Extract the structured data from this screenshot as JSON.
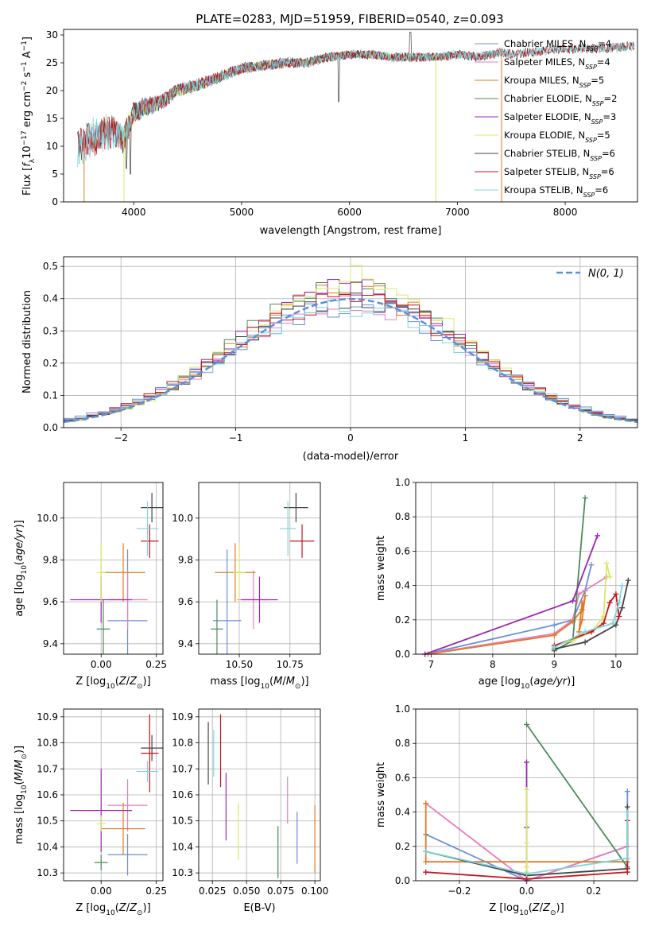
{
  "figure": {
    "title": "PLATE=0283, MJD=51959, FIBERID=0540, z=0.093"
  },
  "colors": {
    "chabrier_miles": "#6a8fdc",
    "salpeter_miles": "#e87dbf",
    "kroupa_miles": "#e07b25",
    "chabrier_elodie": "#4d8a5a",
    "salpeter_elodie": "#9b27b0",
    "kroupa_elodie": "#d8e864",
    "chabrier_stelib": "#444444",
    "salpeter_stelib": "#c4161c",
    "kroupa_stelib": "#7fd4dc"
  },
  "chart_data": [
    {
      "id": "spectrum",
      "type": "line",
      "xlabel": "wavelength [Angstrom, rest frame]",
      "ylabel": "Flux [f_λ10^-17 erg cm^-2 s^-1 A^-1]",
      "xlim": [
        3350,
        8670
      ],
      "ylim": [
        0,
        31
      ],
      "xticks": [
        4000,
        5000,
        6000,
        7000,
        8000
      ],
      "yticks": [
        0,
        5,
        10,
        15,
        20,
        25,
        30
      ],
      "grid": false,
      "legend_position": "top-right",
      "continuum": {
        "x": [
          3480,
          3600,
          3700,
          3800,
          3900,
          4000,
          4100,
          4200,
          4300,
          4400,
          4600,
          4800,
          5000,
          5200,
          5400,
          5600,
          5800,
          6000,
          6200,
          6400,
          6600,
          6800,
          7000,
          7200,
          7400,
          7500,
          7700,
          8000,
          8300,
          8600
        ],
        "y": [
          9.5,
          11.5,
          12,
          13,
          11,
          16,
          17,
          17.5,
          18.5,
          20,
          21,
          22.5,
          24,
          24.5,
          25,
          25,
          26,
          26.5,
          26.5,
          26,
          26,
          26,
          26.5,
          26,
          27,
          26.5,
          27,
          27.5,
          27.5,
          28
        ]
      },
      "noise": {
        "x": [
          3480,
          3600,
          3800,
          4000,
          4200,
          4400,
          5000,
          6000,
          7000,
          8000,
          8600
        ],
        "y": [
          3.0,
          3.5,
          3.0,
          2.0,
          1.5,
          1.2,
          1.0,
          0.8,
          0.8,
          0.8,
          0.8
        ]
      },
      "features": [
        {
          "x": 5900,
          "y": 18
        },
        {
          "x": 6563,
          "y": 30.5
        },
        {
          "x": 3934,
          "y": 6
        },
        {
          "x": 3969,
          "y": 5
        }
      ],
      "series": [
        {
          "name": "Chabrier MILES, N_SSP=4",
          "key": "chabrier_miles",
          "xrange": [
            3540,
            7410
          ]
        },
        {
          "name": "Salpeter MILES, N_SSP=4",
          "key": "salpeter_miles",
          "xrange": [
            3540,
            7410
          ]
        },
        {
          "name": "Kroupa MILES, N_SSP=5",
          "key": "kroupa_miles",
          "xrange": [
            3540,
            7410
          ]
        },
        {
          "name": "Chabrier ELODIE, N_SSP=2",
          "key": "chabrier_elodie",
          "xrange": [
            3900,
            6800
          ]
        },
        {
          "name": "Salpeter ELODIE, N_SSP=3",
          "key": "salpeter_elodie",
          "xrange": [
            3900,
            6800
          ]
        },
        {
          "name": "Kroupa ELODIE, N_SSP=5",
          "key": "kroupa_elodie",
          "xrange": [
            3900,
            6800
          ]
        },
        {
          "name": "Chabrier STELIB, N_SSP=6",
          "key": "chabrier_stelib",
          "xrange": [
            3480,
            8640
          ]
        },
        {
          "name": "Salpeter STELIB, N_SSP=6",
          "key": "salpeter_stelib",
          "xrange": [
            3480,
            8640
          ]
        },
        {
          "name": "Kroupa STELIB, N_SSP=6",
          "key": "kroupa_stelib",
          "xrange": [
            3480,
            8640
          ]
        }
      ],
      "drops": [
        {
          "key": "kroupa_miles",
          "x": 3540
        },
        {
          "key": "kroupa_elodie",
          "x": 3910
        },
        {
          "key": "kroupa_elodie",
          "x": 6800
        },
        {
          "key": "kroupa_miles",
          "x": 7410
        }
      ]
    },
    {
      "id": "residuals",
      "type": "histogram",
      "xlabel": "(data-model)/error",
      "ylabel": "Normed distribution",
      "xlim": [
        -2.5,
        2.5
      ],
      "ylim": [
        0,
        0.53
      ],
      "xticks": [
        -2,
        -1,
        0,
        1,
        2
      ],
      "yticks": [
        0.0,
        0.1,
        0.2,
        0.3,
        0.4,
        0.5
      ],
      "grid": true,
      "legend_position": "top-right",
      "reference": {
        "label": "N(0,1)",
        "mean": 0,
        "sigma": 1
      },
      "bin_width": 0.1,
      "bin_start": -2.5,
      "variants": [
        {
          "key": "chabrier_miles",
          "scale": 1.02,
          "width": 1.08
        },
        {
          "key": "salpeter_miles",
          "scale": 1.0,
          "width": 1.03
        },
        {
          "key": "kroupa_miles",
          "scale": 1.06,
          "width": 1.0
        },
        {
          "key": "chabrier_elodie",
          "scale": 1.1,
          "width": 0.98
        },
        {
          "key": "salpeter_elodie",
          "scale": 1.08,
          "width": 1.0
        },
        {
          "key": "kroupa_elodie",
          "scale": 1.12,
          "width": 0.96
        },
        {
          "key": "chabrier_stelib",
          "scale": 1.04,
          "width": 1.02
        },
        {
          "key": "salpeter_stelib",
          "scale": 1.05,
          "width": 1.04
        },
        {
          "key": "kroupa_stelib",
          "scale": 1.0,
          "width": 1.06
        }
      ]
    },
    {
      "id": "z_age",
      "type": "errorbar",
      "xlabel": "Z [log10(Z/Z_sun)]",
      "ylabel": "age [log10(age/yr)]",
      "xlim": [
        -0.17,
        0.28
      ],
      "ylim": [
        9.35,
        10.17
      ],
      "xticks": [
        0.0,
        0.25
      ],
      "yticks": [
        9.4,
        9.6,
        9.8,
        10.0
      ],
      "grid": true,
      "points": [
        {
          "key": "chabrier_miles",
          "x": 0.12,
          "xerr": 0.09,
          "y": 9.51,
          "yerr": 0.34
        },
        {
          "key": "salpeter_miles",
          "x": 0.12,
          "xerr": 0.09,
          "y": 9.61,
          "yerr": 0.14
        },
        {
          "key": "kroupa_miles",
          "x": 0.1,
          "xerr": 0.1,
          "y": 9.74,
          "yerr": 0.14
        },
        {
          "key": "chabrier_elodie",
          "x": 0.01,
          "xerr": 0.03,
          "y": 9.47,
          "yerr": 0.14
        },
        {
          "key": "salpeter_elodie",
          "x": 0.0,
          "xerr": 0.14,
          "y": 9.61,
          "yerr": 0.11
        },
        {
          "key": "kroupa_elodie",
          "x": 0.0,
          "xerr": 0.02,
          "y": 9.74,
          "yerr": 0.14
        },
        {
          "key": "chabrier_stelib",
          "x": 0.23,
          "xerr": 0.05,
          "y": 10.05,
          "yerr": 0.07
        },
        {
          "key": "salpeter_stelib",
          "x": 0.22,
          "xerr": 0.04,
          "y": 9.89,
          "yerr": 0.08
        },
        {
          "key": "kroupa_stelib",
          "x": 0.21,
          "xerr": 0.05,
          "y": 9.95,
          "yerr": 0.13
        }
      ]
    },
    {
      "id": "mass_age",
      "type": "errorbar",
      "xlabel": "mass [log10(M/M_sun)]",
      "ylabel": "",
      "xlim": [
        10.3,
        10.9
      ],
      "ylim": [
        9.35,
        10.17
      ],
      "xticks": [
        10.5,
        10.75
      ],
      "yticks": [
        9.4,
        9.6,
        9.8,
        10.0
      ],
      "grid": true,
      "points": [
        {
          "key": "chabrier_miles",
          "x": 10.44,
          "xerr": 0.07,
          "y": 9.51,
          "yerr": 0.34
        },
        {
          "key": "salpeter_miles",
          "x": 10.57,
          "xerr": 0.08,
          "y": 9.61,
          "yerr": 0.14
        },
        {
          "key": "kroupa_miles",
          "x": 10.48,
          "xerr": 0.1,
          "y": 9.74,
          "yerr": 0.14
        },
        {
          "key": "chabrier_elodie",
          "x": 10.39,
          "xerr": 0.03,
          "y": 9.47,
          "yerr": 0.14
        },
        {
          "key": "salpeter_elodie",
          "x": 10.6,
          "xerr": 0.09,
          "y": 9.61,
          "yerr": 0.11
        },
        {
          "key": "kroupa_elodie",
          "x": 10.5,
          "xerr": 0.03,
          "y": 9.74,
          "yerr": 0.14
        },
        {
          "key": "chabrier_stelib",
          "x": 10.78,
          "xerr": 0.06,
          "y": 10.05,
          "yerr": 0.07
        },
        {
          "key": "salpeter_stelib",
          "x": 10.81,
          "xerr": 0.06,
          "y": 9.89,
          "yerr": 0.08
        },
        {
          "key": "kroupa_stelib",
          "x": 10.74,
          "xerr": 0.04,
          "y": 9.95,
          "yerr": 0.13
        }
      ]
    },
    {
      "id": "age_weight",
      "type": "line",
      "xlabel": "age [log10(age/yr)]",
      "ylabel": "mass weight",
      "xlim": [
        6.75,
        10.35
      ],
      "ylim": [
        0,
        1.0
      ],
      "xticks": [
        7,
        8,
        9,
        10
      ],
      "yticks": [
        0.0,
        0.2,
        0.4,
        0.6,
        0.8,
        1.0
      ],
      "grid": true,
      "series": [
        {
          "key": "chabrier_miles",
          "x": [
            6.9,
            9.0,
            9.3,
            9.5,
            9.6
          ],
          "y": [
            0.0,
            0.17,
            0.2,
            0.37,
            0.52
          ]
        },
        {
          "key": "salpeter_miles",
          "x": [
            6.9,
            9.0,
            9.3,
            9.4,
            9.85
          ],
          "y": [
            0.0,
            0.12,
            0.2,
            0.35,
            0.45
          ]
        },
        {
          "key": "kroupa_miles",
          "x": [
            6.95,
            9.0,
            9.3,
            9.45,
            9.5,
            9.45,
            9.4,
            9.45
          ],
          "y": [
            0.0,
            0.11,
            0.19,
            0.26,
            0.34,
            0.2,
            0.13,
            0.3
          ]
        },
        {
          "key": "chabrier_elodie",
          "x": [
            9.0,
            9.3,
            9.5
          ],
          "y": [
            0.02,
            0.08,
            0.91
          ]
        },
        {
          "key": "salpeter_elodie",
          "x": [
            6.9,
            9.3,
            9.7
          ],
          "y": [
            0.0,
            0.31,
            0.69
          ]
        },
        {
          "key": "kroupa_elodie",
          "x": [
            9.0,
            9.3,
            9.6,
            9.8,
            9.85,
            9.9
          ],
          "y": [
            0.05,
            0.08,
            0.13,
            0.22,
            0.53,
            0.45
          ]
        },
        {
          "key": "chabrier_stelib",
          "x": [
            9.0,
            9.5,
            10.0,
            10.1,
            10.2
          ],
          "y": [
            0.03,
            0.07,
            0.17,
            0.27,
            0.43
          ]
        },
        {
          "key": "salpeter_stelib",
          "x": [
            9.0,
            9.6,
            9.8,
            9.9,
            10.0,
            10.05
          ],
          "y": [
            0.05,
            0.13,
            0.18,
            0.3,
            0.35,
            0.22
          ]
        },
        {
          "key": "kroupa_stelib",
          "x": [
            9.0,
            9.5,
            9.95,
            10.05,
            10.1
          ],
          "y": [
            0.04,
            0.13,
            0.18,
            0.3,
            0.4
          ]
        }
      ]
    },
    {
      "id": "z_mass",
      "type": "errorbar",
      "xlabel": "Z [log10(Z/Z_sun)]",
      "ylabel": "mass [log10(M/M_sun)]",
      "xlim": [
        -0.17,
        0.28
      ],
      "ylim": [
        10.27,
        10.93
      ],
      "xticks": [
        0.0,
        0.25
      ],
      "yticks": [
        10.3,
        10.4,
        10.5,
        10.6,
        10.7,
        10.8,
        10.9
      ],
      "grid": true,
      "points": [
        {
          "key": "chabrier_miles",
          "x": 0.12,
          "xerr": 0.09,
          "y": 10.37,
          "yerr": 0.08
        },
        {
          "key": "salpeter_miles",
          "x": 0.12,
          "xerr": 0.09,
          "y": 10.56,
          "yerr": 0.1
        },
        {
          "key": "kroupa_miles",
          "x": 0.1,
          "xerr": 0.1,
          "y": 10.47,
          "yerr": 0.1
        },
        {
          "key": "chabrier_elodie",
          "x": 0.0,
          "xerr": 0.03,
          "y": 10.34,
          "yerr": 0.03
        },
        {
          "key": "salpeter_elodie",
          "x": 0.0,
          "xerr": 0.14,
          "y": 10.54,
          "yerr": 0.16
        },
        {
          "key": "kroupa_elodie",
          "x": 0.0,
          "xerr": 0.02,
          "y": 10.49,
          "yerr": 0.03
        },
        {
          "key": "chabrier_stelib",
          "x": 0.23,
          "xerr": 0.05,
          "y": 10.78,
          "yerr": 0.05
        },
        {
          "key": "salpeter_stelib",
          "x": 0.22,
          "xerr": 0.04,
          "y": 10.76,
          "yerr": 0.15
        },
        {
          "key": "kroupa_stelib",
          "x": 0.21,
          "xerr": 0.05,
          "y": 10.69,
          "yerr": 0.04
        }
      ]
    },
    {
      "id": "ebv_mass",
      "type": "errorbar",
      "xlabel": "E(B-V)",
      "ylabel": "",
      "xlim": [
        0.015,
        0.104
      ],
      "ylim": [
        10.27,
        10.93
      ],
      "xticks": [
        0.025,
        0.05,
        0.075,
        0.1
      ],
      "yticks": [
        10.3,
        10.4,
        10.5,
        10.6,
        10.7,
        10.8,
        10.9
      ],
      "grid": true,
      "points": [
        {
          "key": "chabrier_miles",
          "x": 0.087,
          "xerr": 0,
          "y": 10.435,
          "yerr": 0.1
        },
        {
          "key": "salpeter_miles",
          "x": 0.08,
          "xerr": 0,
          "y": 10.58,
          "yerr": 0.09
        },
        {
          "key": "kroupa_miles",
          "x": 0.1,
          "xerr": 0,
          "y": 10.43,
          "yerr": 0.13
        },
        {
          "key": "chabrier_elodie",
          "x": 0.073,
          "xerr": 0,
          "y": 10.38,
          "yerr": 0.1
        },
        {
          "key": "salpeter_elodie",
          "x": 0.035,
          "xerr": 0,
          "y": 10.555,
          "yerr": 0.13
        },
        {
          "key": "kroupa_elodie",
          "x": 0.044,
          "xerr": 0,
          "y": 10.46,
          "yerr": 0.11
        },
        {
          "key": "chabrier_stelib",
          "x": 0.022,
          "xerr": 0,
          "y": 10.76,
          "yerr": 0.12
        },
        {
          "key": "salpeter_stelib",
          "x": 0.031,
          "xerr": 0,
          "y": 10.77,
          "yerr": 0.14
        },
        {
          "key": "kroupa_stelib",
          "x": 0.026,
          "xerr": 0,
          "y": 10.76,
          "yerr": 0.09
        }
      ]
    },
    {
      "id": "z_weight",
      "type": "line",
      "xlabel": "Z [log10(Z/Z_sun)]",
      "ylabel": "mass weight",
      "xlim": [
        -0.33,
        0.33
      ],
      "ylim": [
        0,
        1.0
      ],
      "xticks": [
        -0.2,
        0.0,
        0.2
      ],
      "yticks": [
        0.0,
        0.2,
        0.4,
        0.6,
        0.8,
        1.0
      ],
      "grid": true,
      "series": [
        {
          "key": "chabrier_miles",
          "x": [
            -0.3,
            0.0,
            0.3,
            0.3
          ],
          "y": [
            0.27,
            0.0,
            0.2,
            0.52
          ]
        },
        {
          "key": "salpeter_miles",
          "x": [
            -0.3,
            0.0,
            0.3
          ],
          "y": [
            0.45,
            0.0,
            0.2
          ]
        },
        {
          "key": "kroupa_miles",
          "x": [
            -0.3,
            -0.3,
            0.3
          ],
          "y": [
            0.45,
            0.11,
            0.11
          ]
        },
        {
          "key": "chabrier_elodie",
          "x": [
            0.0,
            0.3
          ],
          "y": [
            0.91,
            0.08
          ]
        },
        {
          "key": "salpeter_elodie",
          "x": [
            0.0,
            0.0,
            0.0
          ],
          "y": [
            0.31,
            0.69,
            0.0
          ]
        },
        {
          "key": "kroupa_elodie",
          "x": [
            0.0,
            0.0,
            0.0,
            0.0
          ],
          "y": [
            0.05,
            0.22,
            0.53,
            0.08
          ]
        },
        {
          "key": "chabrier_stelib",
          "x": [
            -0.3,
            0.0,
            0.3,
            0.3
          ],
          "y": [
            0.17,
            0.03,
            0.07,
            0.43
          ]
        },
        {
          "key": "salpeter_stelib",
          "x": [
            -0.3,
            0.0,
            0.3,
            0.3
          ],
          "y": [
            0.05,
            0.01,
            0.05,
            0.35
          ]
        },
        {
          "key": "kroupa_stelib",
          "x": [
            -0.3,
            0.0,
            0.3,
            0.3
          ],
          "y": [
            0.17,
            0.04,
            0.13,
            0.4
          ]
        }
      ]
    }
  ]
}
